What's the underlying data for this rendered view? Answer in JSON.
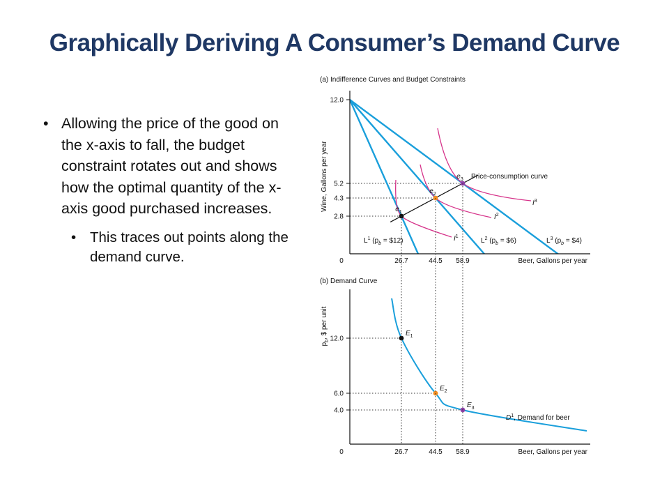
{
  "title": "Graphically Deriving A Consumer’s Demand Curve",
  "bullets": [
    "Allowing the price of the good on the x-axis to fall, the budget constraint rotates out and shows how the optimal quantity of the x-axis good purchased increases.",
    "This traces out points along the demand curve."
  ],
  "colors": {
    "budget": "#1a9fdb",
    "indifference": "#d6338a",
    "pcc": "#111111",
    "demand": "#1a9fdb",
    "point_e1": "#111111",
    "point_e2": "#f28c1e",
    "point_e3": "#8e3fa6"
  },
  "chart_data": [
    {
      "type": "line",
      "panel_label": "(a) Indifference Curves and Budget Constraints",
      "ylabel": "Wine, Gallons per year",
      "xlabel": "Beer, Gallons per year",
      "origin_label": "0",
      "x_ticks": [
        26.7,
        44.5,
        58.9
      ],
      "y_ticks": [
        12.0,
        5.2,
        4.3,
        2.8
      ],
      "x_tick_labels": [
        "26.7",
        "44.5",
        "58.9"
      ],
      "y_tick_labels": [
        "12.0",
        "5.2",
        "4.3",
        "2.8"
      ],
      "budget_lines": [
        {
          "label": "L1 (pb = $12)",
          "y_intercept": 12.0,
          "through": [
            26.7,
            2.8
          ]
        },
        {
          "label": "L2 (pb = $6)",
          "y_intercept": 12.0,
          "through": [
            44.5,
            4.3
          ]
        },
        {
          "label": "L3 (pb = $4)",
          "y_intercept": 12.0,
          "through": [
            58.9,
            5.2
          ]
        }
      ],
      "indifference_curves": [
        "I1",
        "I2",
        "I3"
      ],
      "points": [
        {
          "label": "e1",
          "x": 26.7,
          "y": 2.8
        },
        {
          "label": "e2",
          "x": 44.5,
          "y": 4.3
        },
        {
          "label": "e3",
          "x": 58.9,
          "y": 5.2
        }
      ],
      "annotation": "Price-consumption curve"
    },
    {
      "type": "line",
      "panel_label": "(b) Demand Curve",
      "ylabel": "pb, $ per unit",
      "xlabel": "Beer, Gallons per year",
      "origin_label": "0",
      "x_ticks": [
        26.7,
        44.5,
        58.9
      ],
      "y_ticks": [
        12.0,
        6.0,
        4.0
      ],
      "x_tick_labels": [
        "26.7",
        "44.5",
        "58.9"
      ],
      "y_tick_labels": [
        "12.0",
        "6.0",
        "4.0"
      ],
      "points": [
        {
          "label": "E1",
          "x": 26.7,
          "y": 12.0
        },
        {
          "label": "E2",
          "x": 44.5,
          "y": 6.0
        },
        {
          "label": "E3",
          "x": 58.9,
          "y": 4.0
        }
      ],
      "series": [
        {
          "name": "D1, Demand for beer"
        }
      ]
    }
  ]
}
